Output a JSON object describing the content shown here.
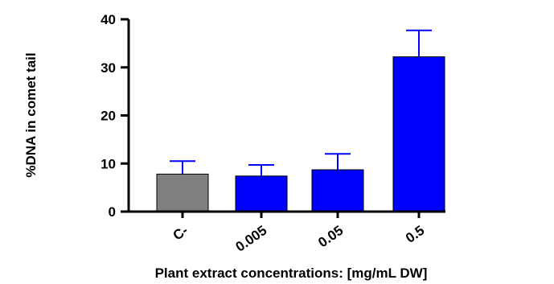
{
  "chart_data": {
    "type": "bar",
    "categories": [
      "C-",
      "0.005",
      "0.05",
      "0.5"
    ],
    "values": [
      7.8,
      7.4,
      8.7,
      32.2
    ],
    "error_upper": [
      10.5,
      9.7,
      12.0,
      37.7
    ],
    "colors": [
      "#808080",
      "#0000ff",
      "#0000ff",
      "#0000ff"
    ],
    "error_color": "#0000ff",
    "xlabel": "Plant extract  concentrations: [mg/mL DW]",
    "ylabel": "%DNA in comet tail",
    "ylim": [
      0,
      40
    ],
    "yticks": [
      "0",
      "10",
      "20",
      "30",
      "40"
    ],
    "grid": false
  }
}
